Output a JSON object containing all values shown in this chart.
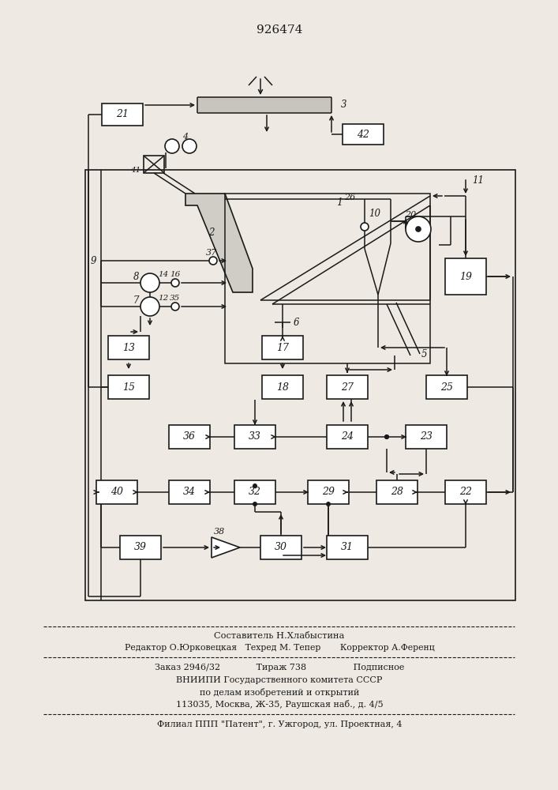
{
  "title": "926474",
  "bg_color": "#eeeae3",
  "line_color": "#1a1a1a",
  "box_color": "#ffffff",
  "text_color": "#1a1a1a",
  "footer": {
    "l0": "Составитель Н.Хлабыстина",
    "l1": "Редактор О.Юрковецкая   Техред М. Тепер       Корректор А.Ференц",
    "l2": "Заказ 2946/32             Тираж 738                 Подписное",
    "l3": "ВНИИПИ Государственного комитета СССР",
    "l4": "по делам изобретений и открытий",
    "l5": "113035, Москва, Ж-35, Раушская наб., д. 4/5",
    "l6": "Филиал ППП \"Патент\", г. Ужгород, ул. Проектная, 4"
  }
}
